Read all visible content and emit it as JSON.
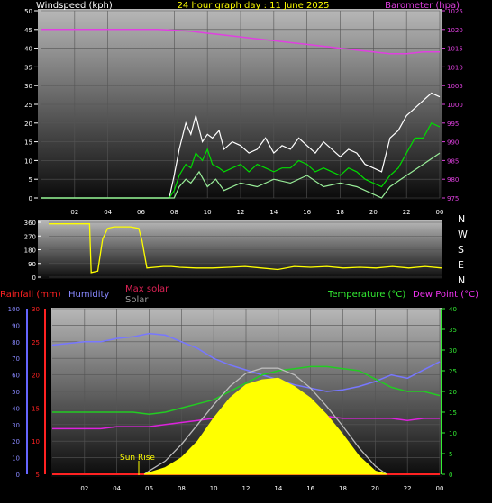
{
  "chart_data": [
    {
      "type": "line",
      "title": "24 hour graph day : 11 June 2025",
      "left_label": "Windspeed (kph)",
      "right_label": "Barometer (hpa)",
      "left_ticks": [
        "50",
        "45",
        "40",
        "35",
        "30",
        "25",
        "20",
        "15",
        "10",
        "5",
        "0"
      ],
      "right_ticks": [
        "1025",
        "1020",
        "1015",
        "1010",
        "1005",
        "1000",
        "995",
        "990",
        "985",
        "980",
        "975"
      ],
      "ylim_left": [
        0,
        50
      ],
      "ylim_right": [
        975,
        1025
      ],
      "x_ticks": [
        "02",
        "04",
        "06",
        "08",
        "10",
        "12",
        "14",
        "16",
        "18",
        "20",
        "22",
        "00"
      ],
      "series": [
        {
          "key": "barometer",
          "color": "#e040e0",
          "axis": "right",
          "x": [
            0,
            2,
            4,
            6,
            7,
            8,
            9,
            10,
            11,
            12,
            13,
            14,
            15,
            16,
            17,
            18,
            19,
            20,
            21,
            22,
            23,
            24
          ],
          "y": [
            1020,
            1020,
            1020,
            1020,
            1020,
            1019.8,
            1019.5,
            1019,
            1018.5,
            1018,
            1017.5,
            1017,
            1016.5,
            1016,
            1015.5,
            1015,
            1014.5,
            1014,
            1013.5,
            1013.5,
            1014,
            1014
          ]
        },
        {
          "key": "gust",
          "color": "#ffffff",
          "axis": "left",
          "x": [
            0,
            7.7,
            8.0,
            8.3,
            8.7,
            9,
            9.3,
            9.7,
            10,
            10.3,
            10.7,
            11,
            11.5,
            12,
            12.5,
            13,
            13.5,
            14,
            14.5,
            15,
            15.5,
            16,
            16.5,
            17,
            17.5,
            18,
            18.5,
            19,
            19.5,
            20,
            20.5,
            21,
            21.5,
            22,
            22.5,
            23,
            23.5,
            24
          ],
          "y": [
            0,
            0,
            6,
            13,
            20,
            17,
            22,
            15,
            17,
            16,
            18,
            13,
            15,
            14,
            12,
            13,
            16,
            12,
            14,
            13,
            16,
            14,
            12,
            15,
            13,
            11,
            13,
            12,
            9,
            8,
            7,
            16,
            18,
            22,
            24,
            26,
            28,
            27
          ]
        },
        {
          "key": "average",
          "color": "#00dd00",
          "axis": "left",
          "x": [
            0,
            7.7,
            8.0,
            8.3,
            8.7,
            9,
            9.3,
            9.7,
            10,
            10.3,
            10.7,
            11,
            11.5,
            12,
            12.5,
            13,
            13.5,
            14,
            14.5,
            15,
            15.5,
            16,
            16.5,
            17,
            17.5,
            18,
            18.5,
            19,
            19.5,
            20,
            20.5,
            21,
            21.5,
            22,
            22.5,
            23,
            23.5,
            24
          ],
          "y": [
            0,
            0,
            2,
            6,
            9,
            8,
            12,
            10,
            13,
            9,
            8,
            7,
            8,
            9,
            7,
            9,
            8,
            7,
            8,
            8,
            10,
            9,
            7,
            8,
            7,
            6,
            8,
            7,
            5,
            4,
            3,
            6,
            8,
            12,
            16,
            16,
            20,
            19
          ]
        },
        {
          "key": "minimum",
          "color": "#99ee99",
          "axis": "left",
          "x": [
            0,
            8.0,
            8.3,
            8.7,
            9,
            9.5,
            10,
            10.5,
            11,
            12,
            13,
            14,
            15,
            16,
            17,
            18,
            19,
            20,
            20.5,
            21,
            22,
            23,
            24
          ],
          "y": [
            0,
            0,
            3,
            5,
            4,
            7,
            3,
            5,
            2,
            4,
            3,
            5,
            4,
            6,
            3,
            4,
            3,
            1,
            0,
            3,
            6,
            9,
            12
          ]
        }
      ]
    },
    {
      "type": "line",
      "title": "",
      "left_ticks": [
        "360",
        "270",
        "180",
        "90",
        "0"
      ],
      "ylim": [
        0,
        360
      ],
      "direction_labels": [
        "N",
        "W",
        "S",
        "E",
        "N"
      ],
      "series": [
        {
          "key": "wind_direction",
          "color": "#ffff00",
          "x": [
            0,
            2.5,
            2.6,
            3.0,
            3.3,
            3.6,
            4.0,
            4.3,
            5.0,
            5.5,
            5.7,
            6.0,
            7.0,
            7.5,
            8.0,
            9,
            10,
            11,
            12,
            13,
            14,
            15,
            16,
            17,
            18,
            19,
            20,
            21,
            22,
            23,
            24
          ],
          "y": [
            350,
            350,
            30,
            40,
            250,
            320,
            330,
            330,
            330,
            320,
            240,
            60,
            70,
            70,
            65,
            60,
            60,
            65,
            70,
            60,
            50,
            70,
            65,
            70,
            60,
            65,
            60,
            70,
            60,
            70,
            60
          ]
        }
      ]
    },
    {
      "type": "area",
      "labels": {
        "rainfall": "Rainfall (mm)",
        "humidity": "Humidity",
        "max_solar": "Max solar",
        "solar": "Solar",
        "temperature": "Temperature (°C)",
        "dew_point": "Dew Point (°C)"
      },
      "annotation": "Sun Rise",
      "left_ticks_hum": [
        "100",
        "90",
        "80",
        "70",
        "60",
        "50",
        "40",
        "30",
        "20",
        "10",
        "0"
      ],
      "left_ticks_rain": [
        "30",
        "25",
        "20",
        "15",
        "10",
        "5"
      ],
      "right_ticks_temp": [
        "40",
        "35",
        "30",
        "25",
        "20",
        "15",
        "10",
        "5",
        "0"
      ],
      "ylim_humidity": [
        0,
        100
      ],
      "ylim_temperature": [
        0,
        40
      ],
      "x_ticks": [
        "02",
        "04",
        "06",
        "08",
        "10",
        "12",
        "14",
        "16",
        "18",
        "20",
        "22",
        "00"
      ],
      "series": [
        {
          "key": "humidity",
          "color": "#7777ff",
          "axis": "humidity",
          "x": [
            0,
            1,
            2,
            3,
            4,
            5,
            6,
            7,
            8,
            9,
            10,
            11,
            12,
            13,
            14,
            15,
            16,
            17,
            18,
            19,
            20,
            21,
            22,
            23,
            24
          ],
          "y": [
            78,
            79,
            80,
            80,
            82,
            83,
            85,
            84,
            80,
            76,
            70,
            66,
            63,
            60,
            57,
            54,
            52,
            50,
            51,
            53,
            56,
            60,
            58,
            63,
            68
          ]
        },
        {
          "key": "temperature",
          "color": "#22cc22",
          "axis": "temperature",
          "x": [
            0,
            1,
            2,
            3,
            4,
            5,
            6,
            7,
            8,
            9,
            10,
            11,
            12,
            13,
            14,
            15,
            16,
            17,
            18,
            19,
            20,
            21,
            22,
            23,
            24
          ],
          "y": [
            15,
            15,
            15,
            15,
            15,
            15,
            14.5,
            15,
            16,
            17,
            18,
            20,
            22,
            24,
            25,
            25.5,
            26,
            26,
            25.5,
            25,
            23,
            21,
            20,
            20,
            19
          ]
        },
        {
          "key": "dew_point",
          "color": "#dd22dd",
          "axis": "temperature",
          "x": [
            0,
            1,
            2,
            3,
            4,
            5,
            6,
            7,
            8,
            9,
            10,
            11,
            12,
            13,
            14,
            15,
            16,
            17,
            18,
            19,
            20,
            21,
            22,
            23,
            24
          ],
          "y": [
            11,
            11,
            11,
            11,
            11.5,
            11.5,
            11.5,
            12,
            12.5,
            13,
            13.5,
            14,
            14.5,
            14,
            14,
            14.5,
            14,
            14,
            13.5,
            13.5,
            13.5,
            13.5,
            13,
            13.5,
            13.5
          ]
        },
        {
          "key": "max_solar",
          "color": "#bbbbbb",
          "axis": "humidity",
          "x": [
            5.7,
            6,
            7,
            8,
            9,
            10,
            11,
            12,
            13,
            14,
            15,
            16,
            17,
            18,
            19,
            20,
            20.7
          ],
          "y": [
            0,
            2,
            8,
            18,
            30,
            42,
            53,
            61,
            64,
            64,
            60,
            52,
            41,
            29,
            16,
            5,
            0
          ]
        },
        {
          "key": "solar",
          "color": "#ffff00",
          "axis": "humidity",
          "x": [
            5.7,
            6,
            7,
            8,
            9,
            10,
            11,
            12,
            13,
            14,
            15,
            16,
            17,
            18,
            19,
            20,
            20.7
          ],
          "y": [
            0,
            1,
            4,
            10,
            20,
            34,
            46,
            54,
            57,
            58,
            53,
            46,
            36,
            24,
            11,
            2,
            0
          ]
        }
      ]
    }
  ]
}
